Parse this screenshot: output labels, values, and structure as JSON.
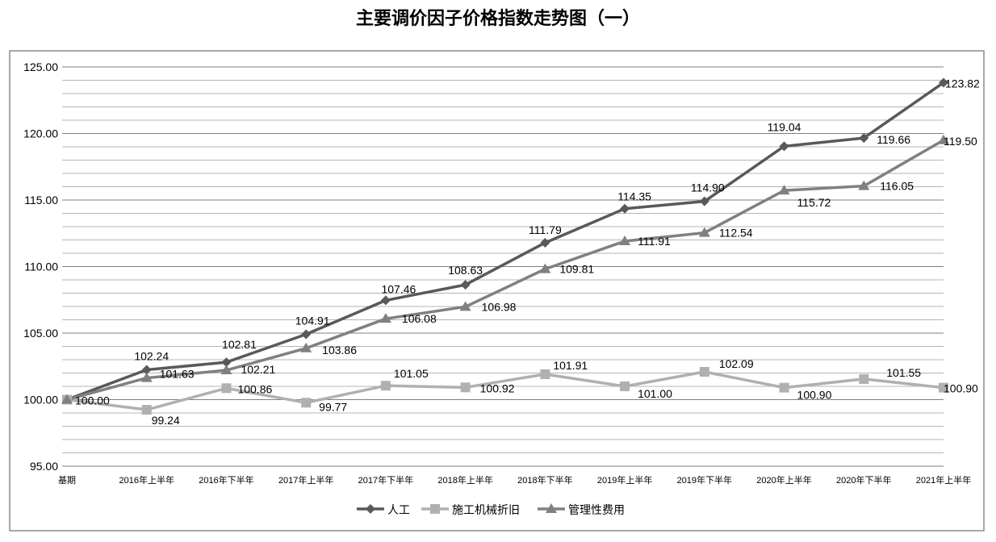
{
  "chart_data": {
    "type": "line",
    "title": "主要调价因子价格指数走势图（一）",
    "categories": [
      "基期",
      "2016年上半年",
      "2016年下半年",
      "2017年上半年",
      "2017年下半年",
      "2018年上半年",
      "2018年下半年",
      "2019年上半年",
      "2019年下半年",
      "2020年上半年",
      "2020年下半年",
      "2021年上半年"
    ],
    "ylim": [
      95,
      125
    ],
    "yticks": [
      "95.00",
      "100.00",
      "105.00",
      "110.00",
      "115.00",
      "120.00",
      "125.00"
    ],
    "grid": true,
    "legend": "bottom",
    "series": [
      {
        "name": "人工",
        "marker": "diamond",
        "color": "#595959",
        "values": [
          100.0,
          102.24,
          102.81,
          104.91,
          107.46,
          108.63,
          111.79,
          114.35,
          114.9,
          119.04,
          119.66,
          123.82
        ]
      },
      {
        "name": "施工机械折旧",
        "marker": "square",
        "color": "#b0b0b0",
        "values": [
          100.0,
          99.24,
          100.86,
          99.77,
          101.05,
          100.92,
          101.91,
          101.0,
          102.09,
          100.9,
          101.55,
          100.9
        ]
      },
      {
        "name": "管理性费用",
        "marker": "triangle",
        "color": "#808080",
        "values": [
          100.0,
          101.63,
          102.21,
          103.86,
          106.08,
          106.98,
          109.81,
          111.91,
          112.54,
          115.72,
          116.05,
          119.5
        ]
      }
    ]
  }
}
